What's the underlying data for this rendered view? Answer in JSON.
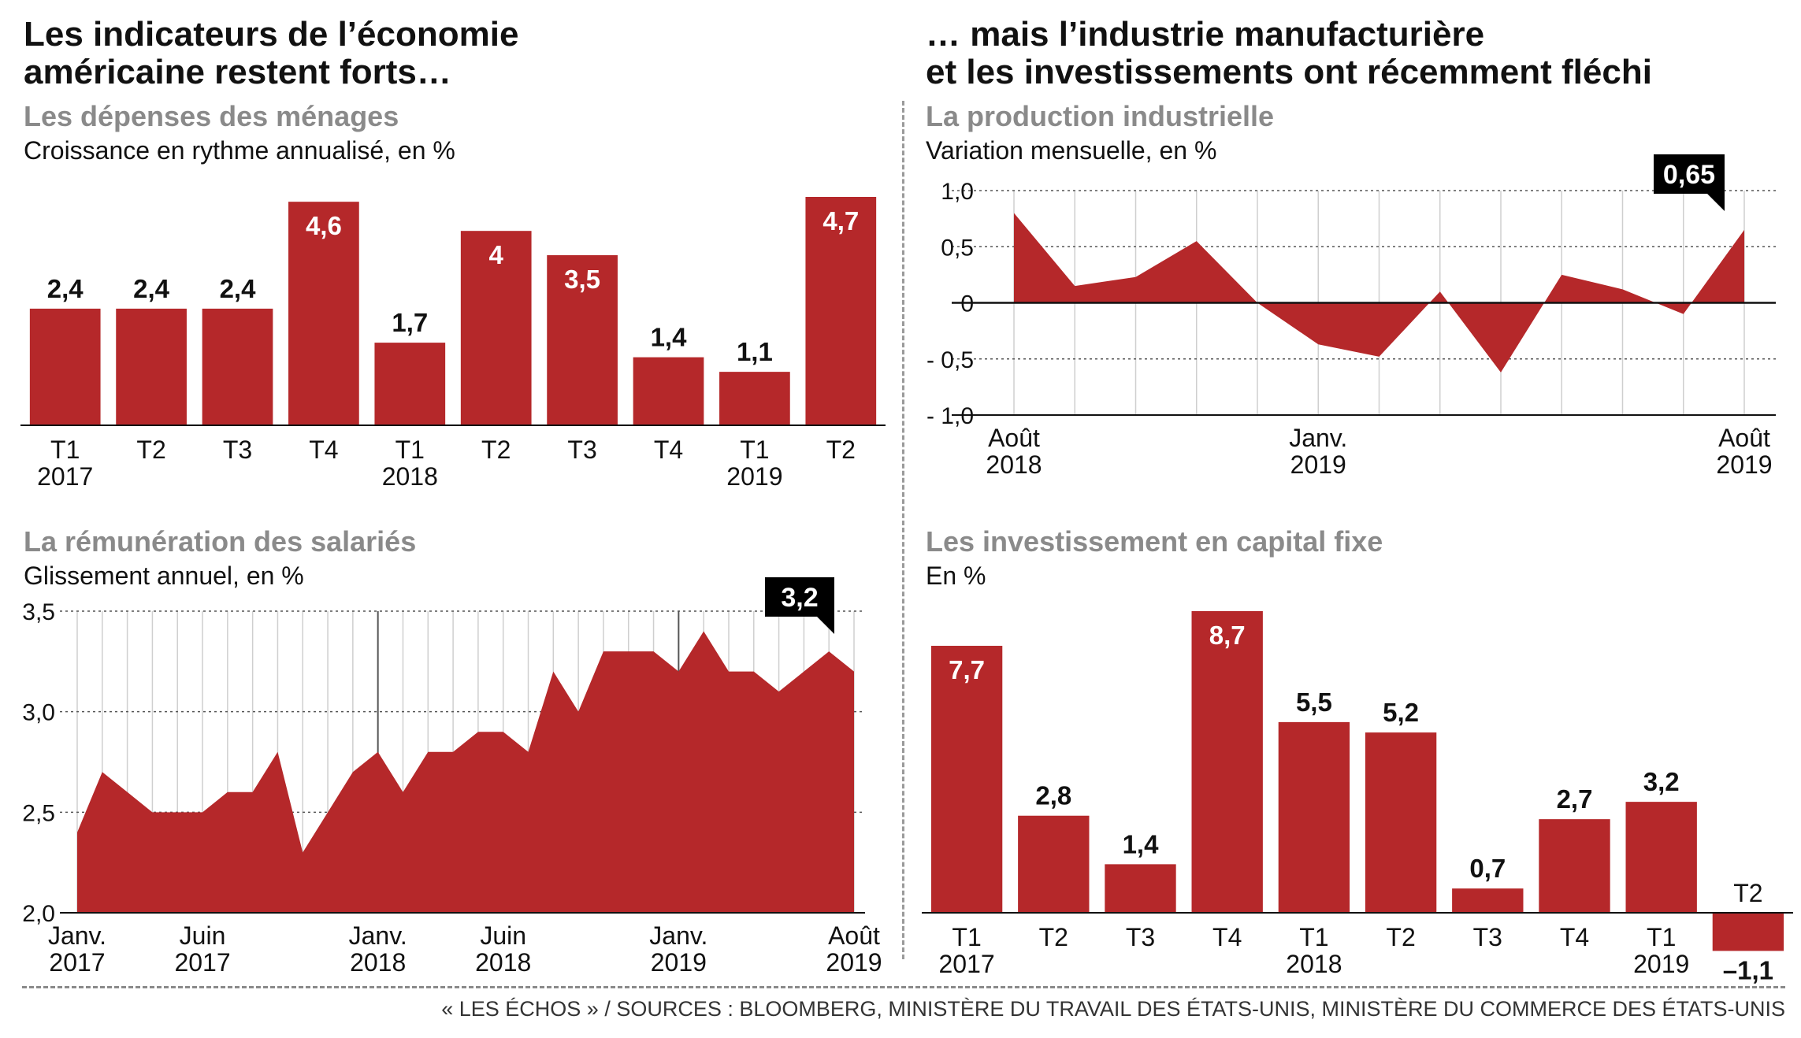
{
  "headline_left": [
    "Les indicateurs de l’économie",
    "américaine restent forts…"
  ],
  "headline_right": [
    "… mais l’industrie manufacturière",
    "et les investissements ont récemment fléchi"
  ],
  "source": "« LES ÉCHOS » / SOURCES : BLOOMBERG, MINISTÈRE DU TRAVAIL DES ÉTATS-UNIS, MINISTÈRE DU COMMERCE DES ÉTATS-UNIS",
  "colors": {
    "bar": "#b5282a",
    "title_gray": "#8a8a8a",
    "callout": "#000000"
  },
  "chart_data": [
    {
      "id": "depenses",
      "type": "bar",
      "title": "Les dépenses des ménages",
      "subtitle": "Croissance en rythme annualisé, en %",
      "categories": [
        "T1",
        "T2",
        "T3",
        "T4",
        "T1",
        "T2",
        "T3",
        "T4",
        "T1",
        "T2"
      ],
      "years": [
        "2017",
        "",
        "",
        "",
        "2018",
        "",
        "",
        "",
        "2019",
        ""
      ],
      "values": [
        2.4,
        2.4,
        2.4,
        4.6,
        1.7,
        4.0,
        3.5,
        1.4,
        1.1,
        4.7
      ],
      "labels": [
        "2,4",
        "2,4",
        "2,4",
        "4,6",
        "1,7",
        "4",
        "3,5",
        "1,4",
        "1,1",
        "4,7"
      ],
      "ylim": [
        0,
        4.7
      ]
    },
    {
      "id": "production",
      "type": "area",
      "title": "La production industrielle",
      "subtitle": "Variation mensuelle, en %",
      "x": [
        "2018-08",
        "2018-09",
        "2018-10",
        "2018-11",
        "2018-12",
        "2019-01",
        "2019-02",
        "2019-03",
        "2019-04",
        "2019-05",
        "2019-06",
        "2019-07",
        "2019-08"
      ],
      "values": [
        0.8,
        0.15,
        0.23,
        0.55,
        0.0,
        -0.37,
        -0.48,
        0.1,
        -0.62,
        0.25,
        0.12,
        -0.1,
        0.65
      ],
      "yticks": [
        "1,0",
        "0,5",
        "0",
        "- 0,5",
        "- 1,0"
      ],
      "ytick_values": [
        1.0,
        0.5,
        0,
        -0.5,
        -1.0
      ],
      "ylim": [
        -1.0,
        1.0
      ],
      "xlabels": [
        {
          "index": 0,
          "line1": "Août",
          "line2": "2018"
        },
        {
          "index": 5,
          "line1": "Janv.",
          "line2": "2019"
        },
        {
          "index": 12,
          "line1": "Août",
          "line2": "2019"
        }
      ],
      "callout": {
        "index": 12,
        "label": "0,65"
      },
      "grid": true
    },
    {
      "id": "remuneration",
      "type": "area",
      "title": "La rémunération des salariés",
      "subtitle": "Glissement annuel, en %",
      "x": [
        "2017-01",
        "2017-02",
        "2017-03",
        "2017-04",
        "2017-05",
        "2017-06",
        "2017-07",
        "2017-08",
        "2017-09",
        "2017-10",
        "2017-11",
        "2017-12",
        "2018-01",
        "2018-02",
        "2018-03",
        "2018-04",
        "2018-05",
        "2018-06",
        "2018-07",
        "2018-08",
        "2018-09",
        "2018-10",
        "2018-11",
        "2018-12",
        "2019-01",
        "2019-02",
        "2019-03",
        "2019-04",
        "2019-05",
        "2019-06",
        "2019-07",
        "2019-08"
      ],
      "values": [
        2.4,
        2.7,
        2.6,
        2.5,
        2.5,
        2.5,
        2.6,
        2.6,
        2.8,
        2.3,
        2.5,
        2.7,
        2.8,
        2.6,
        2.8,
        2.8,
        2.9,
        2.9,
        2.8,
        3.2,
        3.0,
        3.3,
        3.3,
        3.3,
        3.2,
        3.4,
        3.2,
        3.2,
        3.1,
        3.2,
        3.3,
        3.2
      ],
      "yticks": [
        "3,5",
        "3,0",
        "2,5",
        "2,0"
      ],
      "ytick_values": [
        3.5,
        3.0,
        2.5,
        2.0
      ],
      "ylim": [
        2.0,
        3.5
      ],
      "xlabels": [
        {
          "index": 0,
          "line1": "Janv.",
          "line2": "2017"
        },
        {
          "index": 5,
          "line1": "Juin",
          "line2": "2017"
        },
        {
          "index": 12,
          "line1": "Janv.",
          "line2": "2018"
        },
        {
          "index": 17,
          "line1": "Juin",
          "line2": "2018"
        },
        {
          "index": 24,
          "line1": "Janv.",
          "line2": "2019"
        },
        {
          "index": 31,
          "line1": "Août",
          "line2": "2019"
        }
      ],
      "callout": {
        "index": 31,
        "label": "3,2"
      },
      "grid": true
    },
    {
      "id": "investissement",
      "type": "bar",
      "title": "Les investissement en capital fixe",
      "subtitle": "En %",
      "categories": [
        "T1",
        "T2",
        "T3",
        "T4",
        "T1",
        "T2",
        "T3",
        "T4",
        "T1",
        "T2"
      ],
      "years": [
        "2017",
        "",
        "",
        "",
        "2018",
        "",
        "",
        "",
        "2019",
        ""
      ],
      "values": [
        7.7,
        2.8,
        1.4,
        8.7,
        5.5,
        5.2,
        0.7,
        2.7,
        3.2,
        -1.1
      ],
      "labels": [
        "7,7",
        "2,8",
        "1,4",
        "8,7",
        "5,5",
        "5,2",
        "0,7",
        "2,7",
        "3,2",
        "–1,1"
      ],
      "ylim": [
        -1.1,
        8.7
      ]
    }
  ]
}
